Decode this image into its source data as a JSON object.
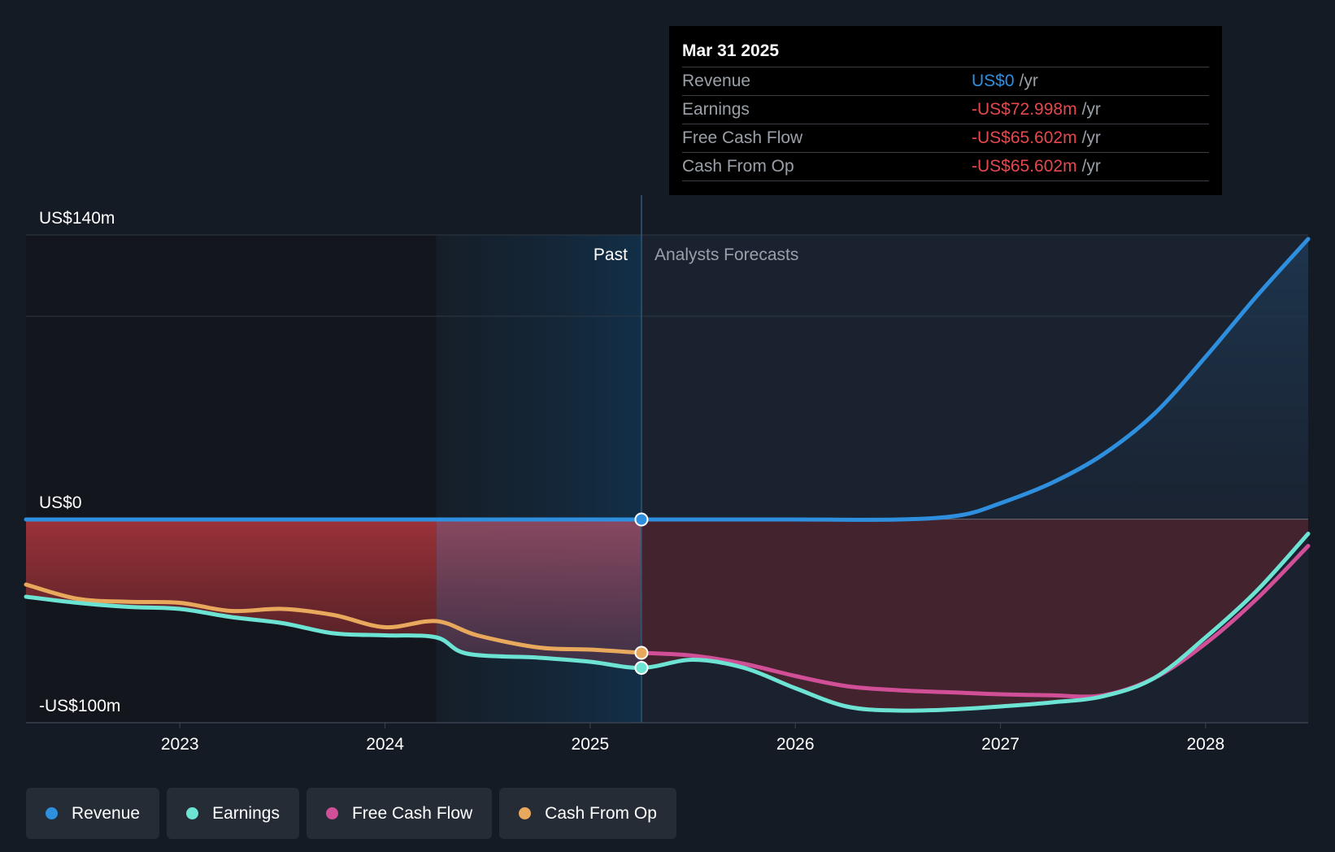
{
  "chart_data": {
    "type": "area",
    "y_axis": {
      "min": -100,
      "max": 140,
      "unit": "US$m",
      "labels": [
        {
          "value": 140,
          "text": "US$140m"
        },
        {
          "value": 0,
          "text": "US$0"
        },
        {
          "value": -100,
          "text": "-US$100m"
        }
      ]
    },
    "x_axis": {
      "min": 2022.25,
      "max": 2028.5,
      "ticks": [
        {
          "value": 2023,
          "text": "2023"
        },
        {
          "value": 2024,
          "text": "2024"
        },
        {
          "value": 2025,
          "text": "2025"
        },
        {
          "value": 2026,
          "text": "2026"
        },
        {
          "value": 2027,
          "text": "2027"
        },
        {
          "value": 2028,
          "text": "2028"
        }
      ]
    },
    "gridlines": [
      140,
      100,
      0,
      -100
    ],
    "past_label": "Past",
    "forecast_label": "Analysts Forecasts",
    "divider_x": 2025.25,
    "highlight_start": 2024.25,
    "series": [
      {
        "name": "Revenue",
        "color": "#2e8fde",
        "points": [
          [
            2022.25,
            0
          ],
          [
            2023,
            0
          ],
          [
            2024,
            0
          ],
          [
            2025,
            0
          ],
          [
            2025.25,
            0
          ],
          [
            2026,
            0
          ],
          [
            2026.5,
            0
          ],
          [
            2026.8,
            2
          ],
          [
            2027,
            8
          ],
          [
            2027.25,
            18
          ],
          [
            2027.5,
            32
          ],
          [
            2027.75,
            52
          ],
          [
            2028,
            80
          ],
          [
            2028.25,
            110
          ],
          [
            2028.5,
            138
          ]
        ]
      },
      {
        "name": "Earnings",
        "color": "#6de3d4",
        "points": [
          [
            2022.25,
            -38
          ],
          [
            2022.5,
            -41
          ],
          [
            2022.75,
            -43
          ],
          [
            2023,
            -44
          ],
          [
            2023.25,
            -48
          ],
          [
            2023.5,
            -51
          ],
          [
            2023.75,
            -56
          ],
          [
            2024,
            -57
          ],
          [
            2024.25,
            -58
          ],
          [
            2024.4,
            -66
          ],
          [
            2024.75,
            -68
          ],
          [
            2025,
            -70
          ],
          [
            2025.25,
            -73
          ],
          [
            2025.5,
            -69
          ],
          [
            2025.75,
            -73
          ],
          [
            2026,
            -83
          ],
          [
            2026.25,
            -92
          ],
          [
            2026.5,
            -94
          ],
          [
            2026.75,
            -93.5
          ],
          [
            2027,
            -92
          ],
          [
            2027.25,
            -90
          ],
          [
            2027.5,
            -87
          ],
          [
            2027.75,
            -78
          ],
          [
            2028,
            -58
          ],
          [
            2028.25,
            -35
          ],
          [
            2028.5,
            -7
          ]
        ]
      },
      {
        "name": "Free Cash Flow",
        "color": "#d04f97",
        "points": [
          [
            2025.25,
            -65.6
          ],
          [
            2025.5,
            -67
          ],
          [
            2025.75,
            -71
          ],
          [
            2026,
            -77
          ],
          [
            2026.25,
            -82
          ],
          [
            2026.5,
            -84
          ],
          [
            2026.75,
            -85
          ],
          [
            2027,
            -86
          ],
          [
            2027.25,
            -86.5
          ],
          [
            2027.5,
            -86.5
          ],
          [
            2027.75,
            -78
          ],
          [
            2028,
            -61
          ],
          [
            2028.25,
            -39
          ],
          [
            2028.5,
            -13
          ]
        ]
      },
      {
        "name": "Cash From Op",
        "color": "#e9a95d",
        "points": [
          [
            2022.25,
            -32
          ],
          [
            2022.5,
            -39
          ],
          [
            2022.75,
            -40.5
          ],
          [
            2023,
            -41
          ],
          [
            2023.25,
            -45
          ],
          [
            2023.5,
            -44
          ],
          [
            2023.75,
            -47
          ],
          [
            2024,
            -53
          ],
          [
            2024.25,
            -50
          ],
          [
            2024.45,
            -57
          ],
          [
            2024.75,
            -63
          ],
          [
            2025,
            -64
          ],
          [
            2025.25,
            -65.6
          ]
        ]
      }
    ]
  },
  "tooltip": {
    "date": "Mar 31 2025",
    "rows": [
      {
        "label": "Revenue",
        "value": "US$0",
        "unit": "/yr",
        "color": "#2e8fde"
      },
      {
        "label": "Earnings",
        "value": "-US$72.998m",
        "unit": "/yr",
        "color": "#e5484d"
      },
      {
        "label": "Free Cash Flow",
        "value": "-US$65.602m",
        "unit": "/yr",
        "color": "#e5484d"
      },
      {
        "label": "Cash From Op",
        "value": "-US$65.602m",
        "unit": "/yr",
        "color": "#e5484d"
      }
    ]
  },
  "legend": [
    {
      "label": "Revenue",
      "color": "#2e8fde"
    },
    {
      "label": "Earnings",
      "color": "#6de3d4"
    },
    {
      "label": "Free Cash Flow",
      "color": "#d04f97"
    },
    {
      "label": "Cash From Op",
      "color": "#e9a95d"
    }
  ]
}
